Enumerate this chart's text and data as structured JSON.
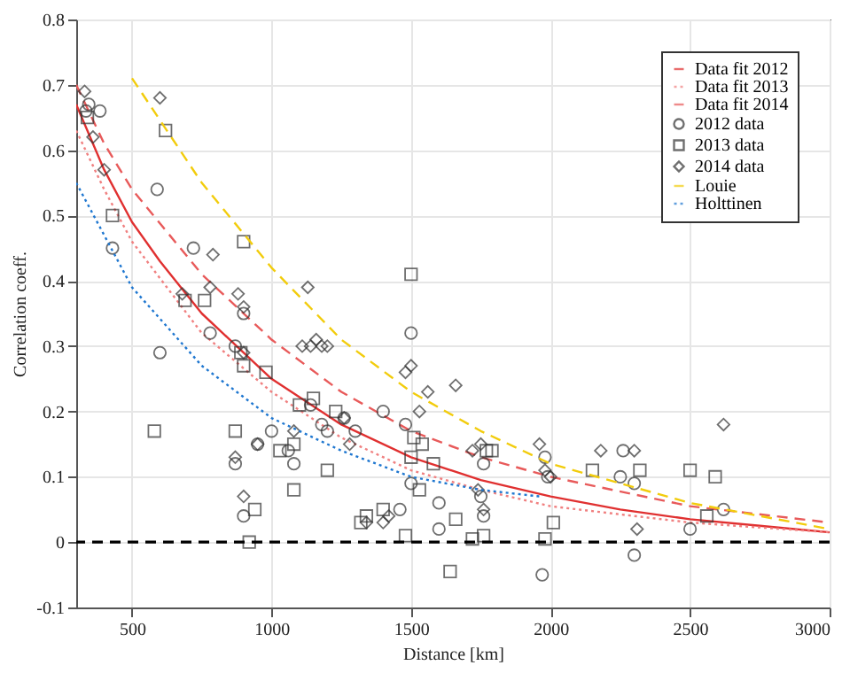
{
  "chart_data": {
    "type": "scatter",
    "xlabel": "Distance [km]",
    "ylabel": "Correlation coeff.",
    "xlim": [
      300,
      3000
    ],
    "xticks": [
      500,
      1000,
      1500,
      2000,
      2500,
      3000
    ],
    "ylim": [
      -0.1,
      0.8
    ],
    "yticks": [
      -0.1,
      0,
      0.1,
      0.2,
      0.3,
      0.4,
      0.5,
      0.6,
      0.7,
      0.8
    ],
    "grid": true,
    "legend": "top right",
    "ref_lines": [
      {
        "axis": "y",
        "value": 0,
        "color": "#000000",
        "line_style": "dashed"
      }
    ],
    "series": [
      {
        "name": "Data fit 2012",
        "type": "line",
        "color": "#e03030",
        "line_style": "solid",
        "x": [
          300,
          400,
          500,
          600,
          750,
          1000,
          1250,
          1500,
          1750,
          2000,
          2250,
          2500,
          2750,
          3000
        ],
        "values": [
          0.67,
          0.57,
          0.49,
          0.43,
          0.35,
          0.25,
          0.18,
          0.13,
          0.095,
          0.07,
          0.05,
          0.035,
          0.025,
          0.015
        ]
      },
      {
        "name": "Data fit 2013",
        "type": "line",
        "color": "#f08080",
        "line_style": "dotted",
        "x": [
          300,
          400,
          500,
          750,
          1000,
          1250,
          1500,
          1750,
          2000,
          2500,
          3000
        ],
        "values": [
          0.63,
          0.54,
          0.46,
          0.32,
          0.23,
          0.16,
          0.11,
          0.08,
          0.055,
          0.03,
          0.015
        ]
      },
      {
        "name": "Data fit 2014",
        "type": "line",
        "color": "#e85a5a",
        "line_style": "dashed",
        "x": [
          300,
          400,
          500,
          750,
          1000,
          1250,
          1500,
          1750,
          2000,
          2500,
          3000
        ],
        "values": [
          0.7,
          0.61,
          0.54,
          0.41,
          0.31,
          0.23,
          0.17,
          0.13,
          0.1,
          0.055,
          0.03
        ]
      },
      {
        "name": "2012 data",
        "marker": "circle",
        "color": "#333333",
        "x": [
          335,
          345,
          385,
          430,
          590,
          600,
          720,
          780,
          870,
          900,
          870,
          900,
          950,
          1000,
          1060,
          1080,
          1140,
          1180,
          1200,
          1260,
          1300,
          1400,
          1500,
          1480,
          1500,
          1460,
          1600,
          1600,
          1760,
          1750,
          1760,
          1970,
          1980,
          1990,
          2250,
          2260,
          2300,
          2300,
          2500,
          2620
        ],
        "values": [
          0.66,
          0.67,
          0.66,
          0.45,
          0.54,
          0.29,
          0.45,
          0.32,
          0.3,
          0.35,
          0.12,
          0.04,
          0.15,
          0.17,
          0.14,
          0.12,
          0.21,
          0.18,
          0.17,
          0.19,
          0.17,
          0.2,
          0.32,
          0.18,
          0.09,
          0.05,
          0.02,
          0.06,
          0.12,
          0.07,
          0.04,
          -0.05,
          0.13,
          0.1,
          0.1,
          0.14,
          0.09,
          -0.02,
          0.02,
          0.05
        ]
      },
      {
        "name": "2013 data",
        "marker": "square",
        "color": "#333333",
        "x": [
          340,
          430,
          580,
          620,
          690,
          760,
          870,
          890,
          900,
          900,
          920,
          940,
          980,
          1030,
          1080,
          1080,
          1100,
          1150,
          1200,
          1230,
          1320,
          1340,
          1400,
          1480,
          1500,
          1500,
          1510,
          1530,
          1540,
          1580,
          1640,
          1660,
          1720,
          1760,
          1770,
          1790,
          1980,
          2010,
          2150,
          2320,
          2500,
          2560,
          2590
        ],
        "values": [
          0.65,
          0.5,
          0.17,
          0.63,
          0.37,
          0.37,
          0.17,
          0.29,
          0.46,
          0.27,
          0.0,
          0.05,
          0.26,
          0.14,
          0.08,
          0.15,
          0.21,
          0.22,
          0.11,
          0.2,
          0.03,
          0.04,
          0.05,
          0.01,
          0.41,
          0.13,
          0.16,
          0.08,
          0.15,
          0.12,
          -0.045,
          0.035,
          0.005,
          0.01,
          0.14,
          0.14,
          0.005,
          0.03,
          0.11,
          0.11,
          0.11,
          0.04,
          0.1
        ]
      },
      {
        "name": "2014 data",
        "marker": "diamond",
        "color": "#333333",
        "x": [
          330,
          360,
          400,
          600,
          680,
          780,
          790,
          870,
          880,
          900,
          900,
          900,
          950,
          1080,
          1110,
          1130,
          1140,
          1160,
          1180,
          1200,
          1260,
          1280,
          1340,
          1400,
          1420,
          1480,
          1500,
          1530,
          1560,
          1660,
          1720,
          1740,
          1750,
          1760,
          1960,
          1980,
          2000,
          2180,
          2300,
          2310,
          2620
        ],
        "values": [
          0.69,
          0.62,
          0.57,
          0.68,
          0.38,
          0.39,
          0.44,
          0.13,
          0.38,
          0.36,
          0.29,
          0.07,
          0.15,
          0.17,
          0.3,
          0.39,
          0.3,
          0.31,
          0.3,
          0.3,
          0.19,
          0.15,
          0.03,
          0.03,
          0.04,
          0.26,
          0.27,
          0.2,
          0.23,
          0.24,
          0.14,
          0.08,
          0.15,
          0.05,
          0.15,
          0.11,
          0.1,
          0.14,
          0.14,
          0.02,
          0.18
        ]
      },
      {
        "name": "Louie",
        "type": "line",
        "color": "#f2cc0c",
        "line_style": "dashed",
        "x": [
          500,
          750,
          1000,
          1250,
          1500,
          1750,
          2000,
          2500,
          3000
        ],
        "values": [
          0.71,
          0.55,
          0.42,
          0.31,
          0.23,
          0.17,
          0.12,
          0.06,
          0.02
        ]
      },
      {
        "name": "Holttinen",
        "type": "line",
        "color": "#1f77d0",
        "line_style": "dotted",
        "x": [
          300,
          500,
          750,
          1000,
          1250,
          1500,
          1750,
          1960
        ],
        "values": [
          0.55,
          0.39,
          0.27,
          0.19,
          0.14,
          0.1,
          0.08,
          0.07
        ]
      }
    ]
  }
}
